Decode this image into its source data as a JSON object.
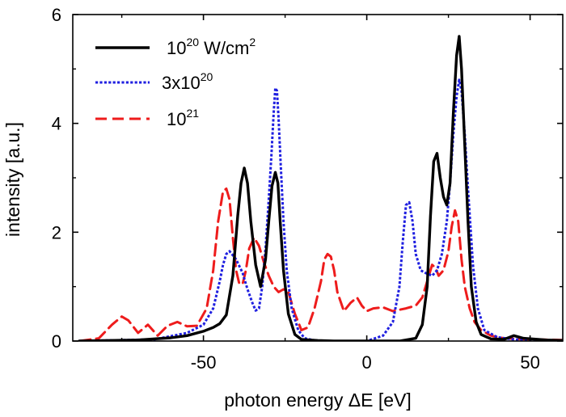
{
  "chart_data": {
    "type": "line",
    "xlabel": "photon energy ΔE [eV]",
    "ylabel": "intensity [a.u.]",
    "xlim": [
      -90,
      60
    ],
    "ylim": [
      0,
      6
    ],
    "xticks": [
      -50,
      0,
      50
    ],
    "yticks": [
      0,
      2,
      4,
      6
    ],
    "grid": false,
    "legend": "top-left",
    "series": [
      {
        "name": "10^20 W/cm^2",
        "legend_base": "10",
        "legend_sup": "20",
        "legend_unit": " W/cm",
        "legend_unit_sup": "2",
        "color": "#000000",
        "style": "solid",
        "x": [
          -88,
          -70,
          -60,
          -55,
          -50,
          -47,
          -45,
          -43,
          -41,
          -39.5,
          -38.5,
          -37.5,
          -36.5,
          -35.5,
          -34,
          -32.5,
          -31,
          -30,
          -29,
          -28,
          -27.2,
          -26.5,
          -25.5,
          -24,
          -22,
          -20,
          -15,
          -10,
          0,
          10,
          15,
          17,
          18.5,
          19.5,
          20.5,
          21.5,
          22.5,
          23.5,
          24.5,
          25.5,
          26.5,
          27.5,
          28.3,
          29,
          30,
          31,
          32,
          33.5,
          35,
          38,
          42,
          45,
          48,
          55,
          60
        ],
        "y": [
          0,
          0.02,
          0.06,
          0.1,
          0.18,
          0.25,
          0.32,
          0.48,
          1.2,
          2.3,
          2.9,
          3.18,
          2.9,
          2.2,
          1.4,
          1.0,
          1.5,
          2.2,
          2.85,
          3.1,
          2.9,
          2.2,
          1.3,
          0.5,
          0.12,
          0.03,
          0.01,
          0,
          0,
          0,
          0.05,
          0.3,
          1.0,
          2.3,
          3.3,
          3.45,
          3.0,
          2.65,
          2.5,
          2.9,
          4.2,
          5.25,
          5.6,
          5.0,
          3.6,
          2.2,
          1.0,
          0.35,
          0.12,
          0.04,
          0.03,
          0.1,
          0.05,
          0.02,
          0.01
        ]
      },
      {
        "name": "3x10^20",
        "legend_base": "3x10",
        "legend_sup": "20",
        "color": "#1f1fe0",
        "style": "dotted",
        "x": [
          -88,
          -65,
          -55,
          -50,
          -47,
          -45,
          -44,
          -43,
          -42,
          -40,
          -38,
          -36.5,
          -35,
          -34,
          -33,
          -32,
          -31,
          -30,
          -29.2,
          -28.5,
          -28,
          -27.5,
          -27,
          -26.3,
          -25.5,
          -24.5,
          -23,
          -21,
          -19,
          -15,
          0,
          5,
          8,
          10,
          11,
          12,
          13,
          14,
          15,
          16.5,
          18,
          20,
          21.5,
          23,
          24.5,
          25.5,
          26.5,
          27.5,
          28.3,
          29,
          30,
          31,
          32.5,
          34,
          36,
          40,
          45,
          55,
          60
        ],
        "y": [
          0,
          0.03,
          0.15,
          0.3,
          0.6,
          1.1,
          1.4,
          1.6,
          1.65,
          1.5,
          1.25,
          0.95,
          0.7,
          0.56,
          0.6,
          1.0,
          1.7,
          2.6,
          3.4,
          4.2,
          4.65,
          4.6,
          4.1,
          3.2,
          2.2,
          1.3,
          0.6,
          0.2,
          0.05,
          0,
          0,
          0.1,
          0.35,
          1.0,
          1.8,
          2.5,
          2.55,
          2.2,
          1.6,
          1.3,
          1.25,
          1.2,
          1.3,
          1.6,
          2.2,
          2.9,
          3.8,
          4.5,
          4.8,
          4.6,
          3.8,
          2.8,
          1.4,
          0.6,
          0.2,
          0.07,
          0.03,
          0.01,
          0.01
        ]
      },
      {
        "name": "10^21",
        "legend_base": "10",
        "legend_sup": "21",
        "color": "#ee1c1c",
        "style": "dashed",
        "x": [
          -88,
          -82,
          -78,
          -75,
          -73,
          -70,
          -67,
          -64,
          -61,
          -58,
          -55,
          -52,
          -49,
          -47,
          -45.5,
          -44,
          -43,
          -42,
          -41,
          -40,
          -39,
          -38,
          -37,
          -36,
          -34.5,
          -33,
          -31.5,
          -30,
          -28.5,
          -27,
          -25.5,
          -24,
          -22,
          -20,
          -18,
          -16,
          -14,
          -13,
          -12,
          -11,
          -10,
          -9,
          -7,
          -5,
          -3,
          -1.5,
          0,
          2,
          5,
          8,
          12,
          15,
          17,
          19,
          20,
          21,
          22,
          23.5,
          25,
          26,
          27,
          28,
          29,
          30,
          31.5,
          33,
          35,
          38,
          42,
          50,
          60
        ],
        "y": [
          0,
          0.05,
          0.3,
          0.45,
          0.38,
          0.15,
          0.3,
          0.1,
          0.28,
          0.35,
          0.27,
          0.28,
          0.6,
          1.3,
          2.2,
          2.75,
          2.8,
          2.6,
          1.9,
          1.3,
          1.05,
          1.05,
          1.3,
          1.7,
          1.9,
          1.75,
          1.45,
          1.2,
          1.0,
          0.9,
          0.95,
          0.9,
          0.5,
          0.2,
          0.25,
          0.6,
          1.1,
          1.5,
          1.6,
          1.55,
          1.3,
          0.9,
          0.55,
          0.7,
          0.8,
          0.65,
          0.55,
          0.6,
          0.62,
          0.55,
          0.6,
          0.65,
          0.8,
          1.2,
          1.4,
          1.35,
          1.2,
          1.3,
          1.65,
          2.1,
          2.4,
          2.2,
          1.5,
          1.0,
          0.6,
          0.35,
          0.2,
          0.1,
          0.05,
          0.03,
          0.02
        ]
      }
    ]
  }
}
